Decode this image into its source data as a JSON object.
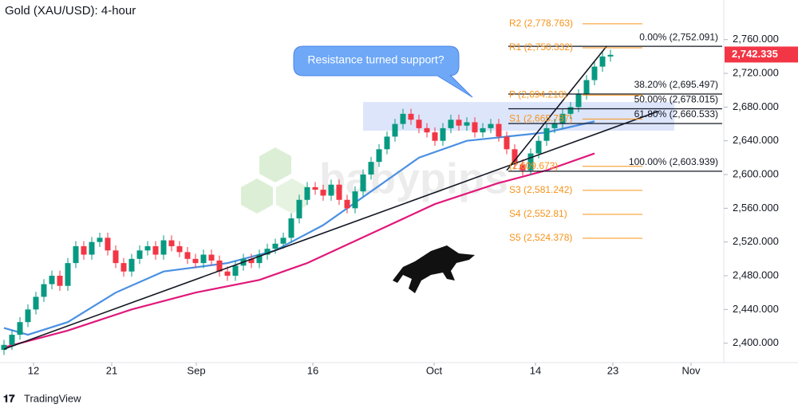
{
  "chart_data": {
    "type": "candlestick",
    "title": "Gold (XAU/USD): 4-hour",
    "watermark": "babypips",
    "footer": "TradingView",
    "callout": "Resistance turned support?",
    "last_price": {
      "value": 2742.335,
      "label": "2,742.335"
    },
    "up_color": "#089981",
    "down_color": "#f23645",
    "xlim": [
      -0.5,
      90
    ],
    "ylim": [
      2377,
      2807
    ],
    "xticks": [
      {
        "value": 3.7,
        "label": "12"
      },
      {
        "value": 13.5,
        "label": "21"
      },
      {
        "value": 24.1,
        "label": "Sep"
      },
      {
        "value": 38.7,
        "label": "16"
      },
      {
        "value": 53.9,
        "label": "Oct"
      },
      {
        "value": 66.6,
        "label": "14"
      },
      {
        "value": 76.3,
        "label": "23"
      },
      {
        "value": 86.1,
        "label": "Nov"
      }
    ],
    "yticks": [
      {
        "value": 2400,
        "label": "2,400.000"
      },
      {
        "value": 2440,
        "label": "2,440.000"
      },
      {
        "value": 2480,
        "label": "2,480.000"
      },
      {
        "value": 2520,
        "label": "2,520.000"
      },
      {
        "value": 2560,
        "label": "2,560.000"
      },
      {
        "value": 2600,
        "label": "2,600.000"
      },
      {
        "value": 2640,
        "label": "2,640.000"
      },
      {
        "value": 2680,
        "label": "2,680.000"
      },
      {
        "value": 2720,
        "label": "2,720.000"
      },
      {
        "value": 2760,
        "label": "2,760.000"
      }
    ],
    "x": [
      0,
      1,
      2,
      3,
      4,
      5,
      6,
      7,
      8,
      9,
      10,
      11,
      12,
      13,
      14,
      15,
      16,
      17,
      18,
      19,
      20,
      21,
      22,
      23,
      24,
      25,
      26,
      27,
      28,
      29,
      30,
      31,
      32,
      33,
      34,
      35,
      36,
      37,
      38,
      39,
      40,
      41,
      42,
      43,
      44,
      45,
      46,
      47,
      48,
      49,
      50,
      51,
      52,
      53,
      54,
      55,
      56,
      57,
      58,
      59,
      60,
      61,
      62,
      63,
      64,
      65,
      66,
      67,
      68,
      69,
      70,
      71,
      72,
      73,
      74,
      75,
      76
    ],
    "open": [
      2392,
      2398,
      2410,
      2425,
      2440,
      2455,
      2470,
      2480,
      2468,
      2495,
      2515,
      2505,
      2520,
      2525,
      2510,
      2495,
      2485,
      2500,
      2510,
      2515,
      2505,
      2522,
      2515,
      2508,
      2500,
      2495,
      2505,
      2498,
      2485,
      2480,
      2492,
      2500,
      2495,
      2505,
      2512,
      2518,
      2525,
      2548,
      2570,
      2585,
      2582,
      2575,
      2588,
      2570,
      2560,
      2580,
      2600,
      2615,
      2630,
      2645,
      2660,
      2672,
      2665,
      2655,
      2650,
      2640,
      2655,
      2665,
      2658,
      2662,
      2650,
      2655,
      2660,
      2645,
      2630,
      2612,
      2605,
      2625,
      2640,
      2655,
      2660,
      2672,
      2680,
      2695,
      2712,
      2728,
      2740
    ],
    "high": [
      2404,
      2416,
      2431,
      2446,
      2461,
      2476,
      2486,
      2486,
      2501,
      2521,
      2521,
      2526,
      2531,
      2531,
      2516,
      2501,
      2506,
      2516,
      2521,
      2521,
      2528,
      2528,
      2521,
      2514,
      2506,
      2511,
      2511,
      2504,
      2491,
      2498,
      2506,
      2506,
      2511,
      2518,
      2524,
      2531,
      2554,
      2576,
      2591,
      2591,
      2588,
      2594,
      2594,
      2576,
      2586,
      2606,
      2621,
      2636,
      2651,
      2666,
      2678,
      2678,
      2671,
      2661,
      2656,
      2661,
      2671,
      2671,
      2668,
      2668,
      2661,
      2666,
      2666,
      2651,
      2636,
      2618,
      2631,
      2646,
      2661,
      2666,
      2678,
      2686,
      2701,
      2718,
      2734,
      2746,
      2748
    ],
    "low": [
      2386,
      2392,
      2404,
      2419,
      2434,
      2449,
      2464,
      2462,
      2462,
      2489,
      2499,
      2499,
      2514,
      2504,
      2489,
      2479,
      2479,
      2494,
      2504,
      2499,
      2499,
      2509,
      2502,
      2494,
      2489,
      2489,
      2492,
      2479,
      2474,
      2474,
      2486,
      2489,
      2489,
      2499,
      2506,
      2512,
      2519,
      2542,
      2564,
      2576,
      2569,
      2569,
      2564,
      2554,
      2554,
      2574,
      2594,
      2609,
      2624,
      2639,
      2654,
      2659,
      2649,
      2644,
      2634,
      2634,
      2649,
      2652,
      2652,
      2644,
      2644,
      2649,
      2639,
      2624,
      2606,
      2599,
      2599,
      2619,
      2634,
      2649,
      2654,
      2666,
      2674,
      2689,
      2706,
      2722,
      2734
    ],
    "close": [
      2398,
      2410,
      2425,
      2440,
      2455,
      2470,
      2480,
      2468,
      2495,
      2515,
      2505,
      2520,
      2525,
      2510,
      2495,
      2485,
      2500,
      2510,
      2515,
      2505,
      2522,
      2515,
      2508,
      2500,
      2495,
      2505,
      2498,
      2485,
      2480,
      2492,
      2500,
      2495,
      2505,
      2512,
      2518,
      2525,
      2548,
      2570,
      2585,
      2582,
      2575,
      2588,
      2570,
      2560,
      2580,
      2600,
      2615,
      2630,
      2645,
      2660,
      2672,
      2665,
      2655,
      2650,
      2640,
      2655,
      2665,
      2658,
      2662,
      2650,
      2655,
      2660,
      2645,
      2630,
      2612,
      2605,
      2625,
      2640,
      2655,
      2660,
      2672,
      2680,
      2695,
      2712,
      2728,
      2740,
      2742
    ],
    "overlays": [
      {
        "color": "#4a90e2",
        "x": [
          0,
          3,
          8,
          14,
          20,
          28,
          34,
          40,
          46,
          52,
          58,
          63,
          68,
          74
        ],
        "values": [
          2418,
          2410,
          2425,
          2460,
          2485,
          2495,
          2510,
          2540,
          2580,
          2620,
          2640,
          2645,
          2650,
          2663
        ]
      },
      {
        "color": "#e0187a",
        "x": [
          0,
          8,
          16,
          24,
          32,
          38,
          46,
          54,
          62,
          68,
          74
        ],
        "values": [
          2395,
          2415,
          2440,
          2460,
          2475,
          2495,
          2530,
          2565,
          2590,
          2605,
          2625
        ]
      }
    ],
    "trendlines": [
      {
        "x": [
          0,
          82
        ],
        "values": [
          2393,
          2675
        ]
      },
      {
        "x": [
          63,
          75.5
        ],
        "values": [
          2605,
          2752
        ]
      }
    ],
    "zone": {
      "x": [
        45,
        84
      ],
      "values": [
        2652,
        2686
      ]
    },
    "fib_levels": [
      {
        "label": "0.00% (2,752.091)",
        "value": 2752.091
      },
      {
        "label": "38.20% (2,695.497)",
        "value": 2695.497
      },
      {
        "label": "50.00% (2,678.015)",
        "value": 2678.015
      },
      {
        "label": "61.80% (2,660.533)",
        "value": 2660.533
      },
      {
        "label": "100.00% (2,603.939)",
        "value": 2603.939
      }
    ],
    "pivots": [
      {
        "label": "R2 (2,778.763)",
        "value": 2778.763
      },
      {
        "label": "R1 (2,750.332)",
        "value": 2750.332
      },
      {
        "label": "P (2,694.218)",
        "value": 2694.218
      },
      {
        "label": "S1 (2,665.787)",
        "value": 2665.787
      },
      {
        "label": "(2,609.673)",
        "value": 2609.673
      },
      {
        "label": "S3 (2,581.242)",
        "value": 2581.242
      },
      {
        "label": "S4 (2,552.81)",
        "value": 2552.81
      },
      {
        "label": "S5 (2,524.378)",
        "value": 2524.378
      }
    ]
  }
}
